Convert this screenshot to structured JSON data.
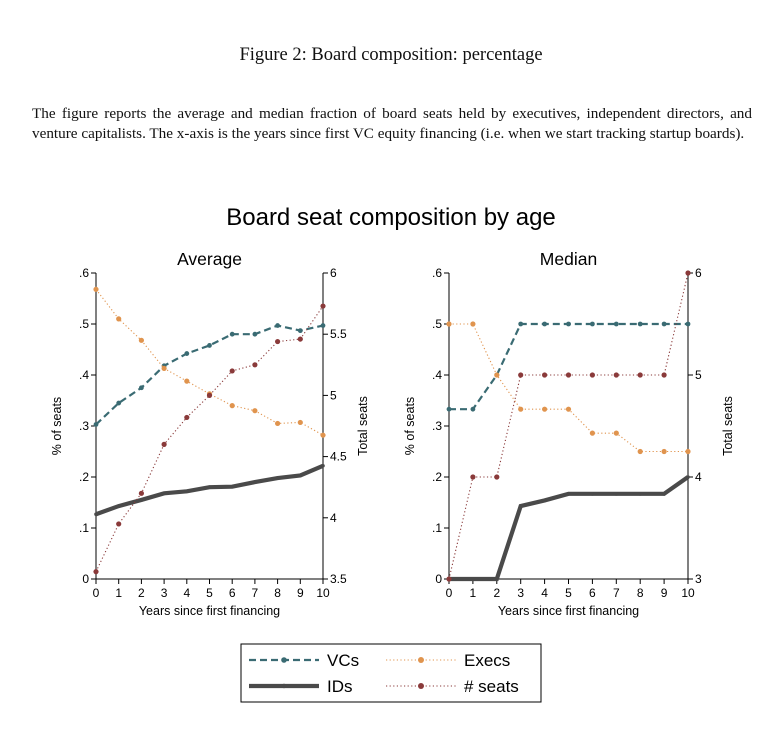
{
  "figure": {
    "caption": "Figure 2:  Board composition:  percentage",
    "note": "The figure reports the average and median fraction of board seats held by executives, independent directors, and venture capitalists. The x-axis is the years since first VC equity financing (i.e. when we start tracking startup boards)."
  },
  "chart_title": "Board seat composition by age",
  "colors": {
    "VCs": "#3a6b73",
    "Execs": "#e0944e",
    "IDs": "#4a4a4a",
    "# seats": "#8a3a3a"
  },
  "chart_data": [
    {
      "type": "line",
      "title": "Average",
      "xlabel": "Years since first financing",
      "ylabel": "% of seats",
      "y2label": "Total seats",
      "x": [
        0,
        1,
        2,
        3,
        4,
        5,
        6,
        7,
        8,
        9,
        10
      ],
      "xticks": [
        "0",
        "1",
        "2",
        "3",
        "4",
        "5",
        "6",
        "7",
        "8",
        "9",
        "10"
      ],
      "ylim": [
        0,
        0.6
      ],
      "yticks": [
        "0",
        ".1",
        ".2",
        ".3",
        ".4",
        ".5",
        ".6"
      ],
      "y2lim": [
        3.5,
        6
      ],
      "y2ticks": [
        "3.5",
        "4",
        "4.5",
        "5",
        "5.5",
        "6"
      ],
      "series": [
        {
          "name": "VCs",
          "axis": "left",
          "style": "dashed",
          "values": [
            0.303,
            0.345,
            0.375,
            0.418,
            0.442,
            0.458,
            0.48,
            0.48,
            0.497,
            0.487,
            0.497
          ]
        },
        {
          "name": "Execs",
          "axis": "left",
          "style": "dotted",
          "values": [
            0.568,
            0.51,
            0.468,
            0.413,
            0.388,
            0.363,
            0.34,
            0.33,
            0.305,
            0.307,
            0.282
          ]
        },
        {
          "name": "IDs",
          "axis": "left",
          "style": "solid-thick",
          "values": [
            0.127,
            0.143,
            0.155,
            0.168,
            0.172,
            0.18,
            0.181,
            0.19,
            0.198,
            0.203,
            0.222
          ]
        },
        {
          "name": "# seats",
          "axis": "right",
          "style": "dotted",
          "values": [
            3.56,
            3.95,
            4.2,
            4.6,
            4.82,
            5.0,
            5.2,
            5.25,
            5.44,
            5.46,
            5.73
          ]
        }
      ]
    },
    {
      "type": "line",
      "title": "Median",
      "xlabel": "Years since first financing",
      "ylabel": "% of seats",
      "y2label": "Total seats",
      "x": [
        0,
        1,
        2,
        3,
        4,
        5,
        6,
        7,
        8,
        9,
        10
      ],
      "xticks": [
        "0",
        "1",
        "2",
        "3",
        "4",
        "5",
        "6",
        "7",
        "8",
        "9",
        "10"
      ],
      "ylim": [
        0,
        0.6
      ],
      "yticks": [
        "0",
        ".1",
        ".2",
        ".3",
        ".4",
        ".5",
        ".6"
      ],
      "y2lim": [
        3,
        6
      ],
      "y2ticks": [
        "3",
        "4",
        "5",
        "6"
      ],
      "series": [
        {
          "name": "VCs",
          "axis": "left",
          "style": "dashed",
          "values": [
            0.333,
            0.333,
            0.4,
            0.5,
            0.5,
            0.5,
            0.5,
            0.5,
            0.5,
            0.5,
            0.5
          ]
        },
        {
          "name": "Execs",
          "axis": "left",
          "style": "dotted",
          "values": [
            0.5,
            0.5,
            0.4,
            0.333,
            0.333,
            0.333,
            0.286,
            0.286,
            0.25,
            0.25,
            0.25
          ]
        },
        {
          "name": "IDs",
          "axis": "left",
          "style": "solid-thick",
          "values": [
            0,
            0,
            0,
            0.143,
            0.154,
            0.167,
            0.167,
            0.167,
            0.167,
            0.167,
            0.2
          ]
        },
        {
          "name": "# seats",
          "axis": "right",
          "style": "dotted",
          "values": [
            3,
            4,
            4,
            5,
            5,
            5,
            5,
            5,
            5,
            5,
            6
          ]
        }
      ]
    }
  ],
  "legend": [
    {
      "name": "VCs",
      "style": "dashed"
    },
    {
      "name": "Execs",
      "style": "dotted"
    },
    {
      "name": "IDs",
      "style": "solid-thick"
    },
    {
      "name": "# seats",
      "style": "dotted"
    }
  ]
}
